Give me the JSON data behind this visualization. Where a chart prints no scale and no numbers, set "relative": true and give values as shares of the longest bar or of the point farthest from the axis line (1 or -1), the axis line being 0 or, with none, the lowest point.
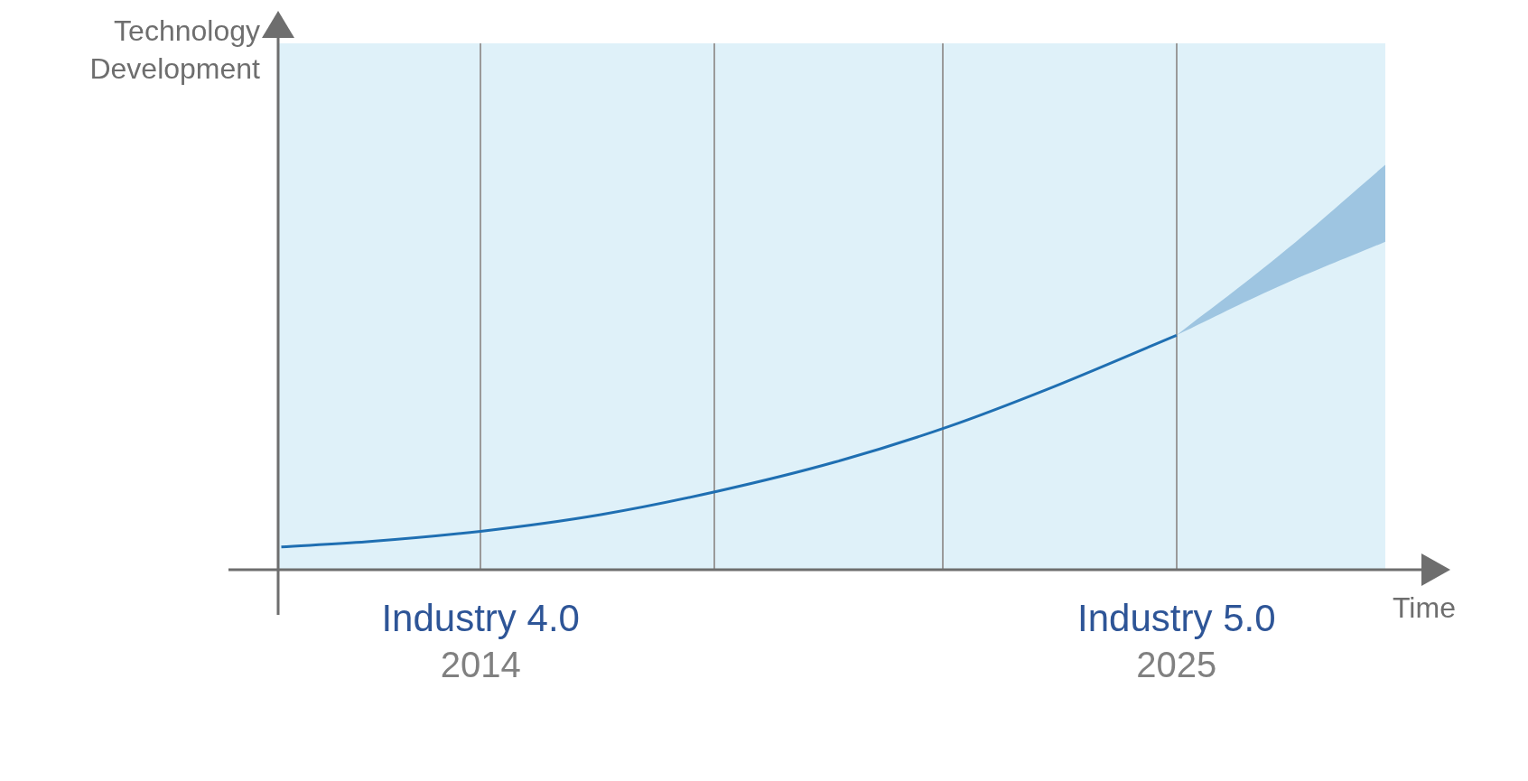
{
  "chart_data": {
    "type": "line",
    "relative": true,
    "xlabel": "Time",
    "xlim": [
      2010.8,
      2028.3
    ],
    "xticks": [
      {
        "value": 2014,
        "label": "2014"
      },
      {
        "value": 2017.7,
        "label": null
      },
      {
        "value": 2021.3,
        "label": null
      },
      {
        "value": 2025,
        "label": "2025"
      }
    ],
    "bands": [
      {
        "axis": "x",
        "from": 2010.8,
        "to": 2028.3,
        "color": "#dff1f9"
      }
    ],
    "grid": "x",
    "legend": false,
    "marker": "none",
    "line_style": "solid",
    "annotations": [
      "Industry 4.0",
      "Industry 5.0",
      "Technology Development"
    ],
    "series": [
      {
        "color": "#1f6fb2",
        "x": [
          2010.85,
          2012.2,
          2014,
          2015.9,
          2017.75,
          2019.6,
          2021.4,
          2022.95,
          2025,
          2026.6,
          2028.3
        ],
        "values": [
          0.097,
          0.119,
          0.164,
          0.235,
          0.335,
          0.459,
          0.611,
          0.769,
          1,
          null,
          null
        ],
        "lower": [
          null,
          null,
          null,
          null,
          null,
          null,
          null,
          null,
          1,
          1.206,
          1.399
        ],
        "upper": [
          null,
          null,
          null,
          null,
          null,
          null,
          null,
          null,
          1,
          1.335,
          1.727
        ]
      }
    ]
  }
}
